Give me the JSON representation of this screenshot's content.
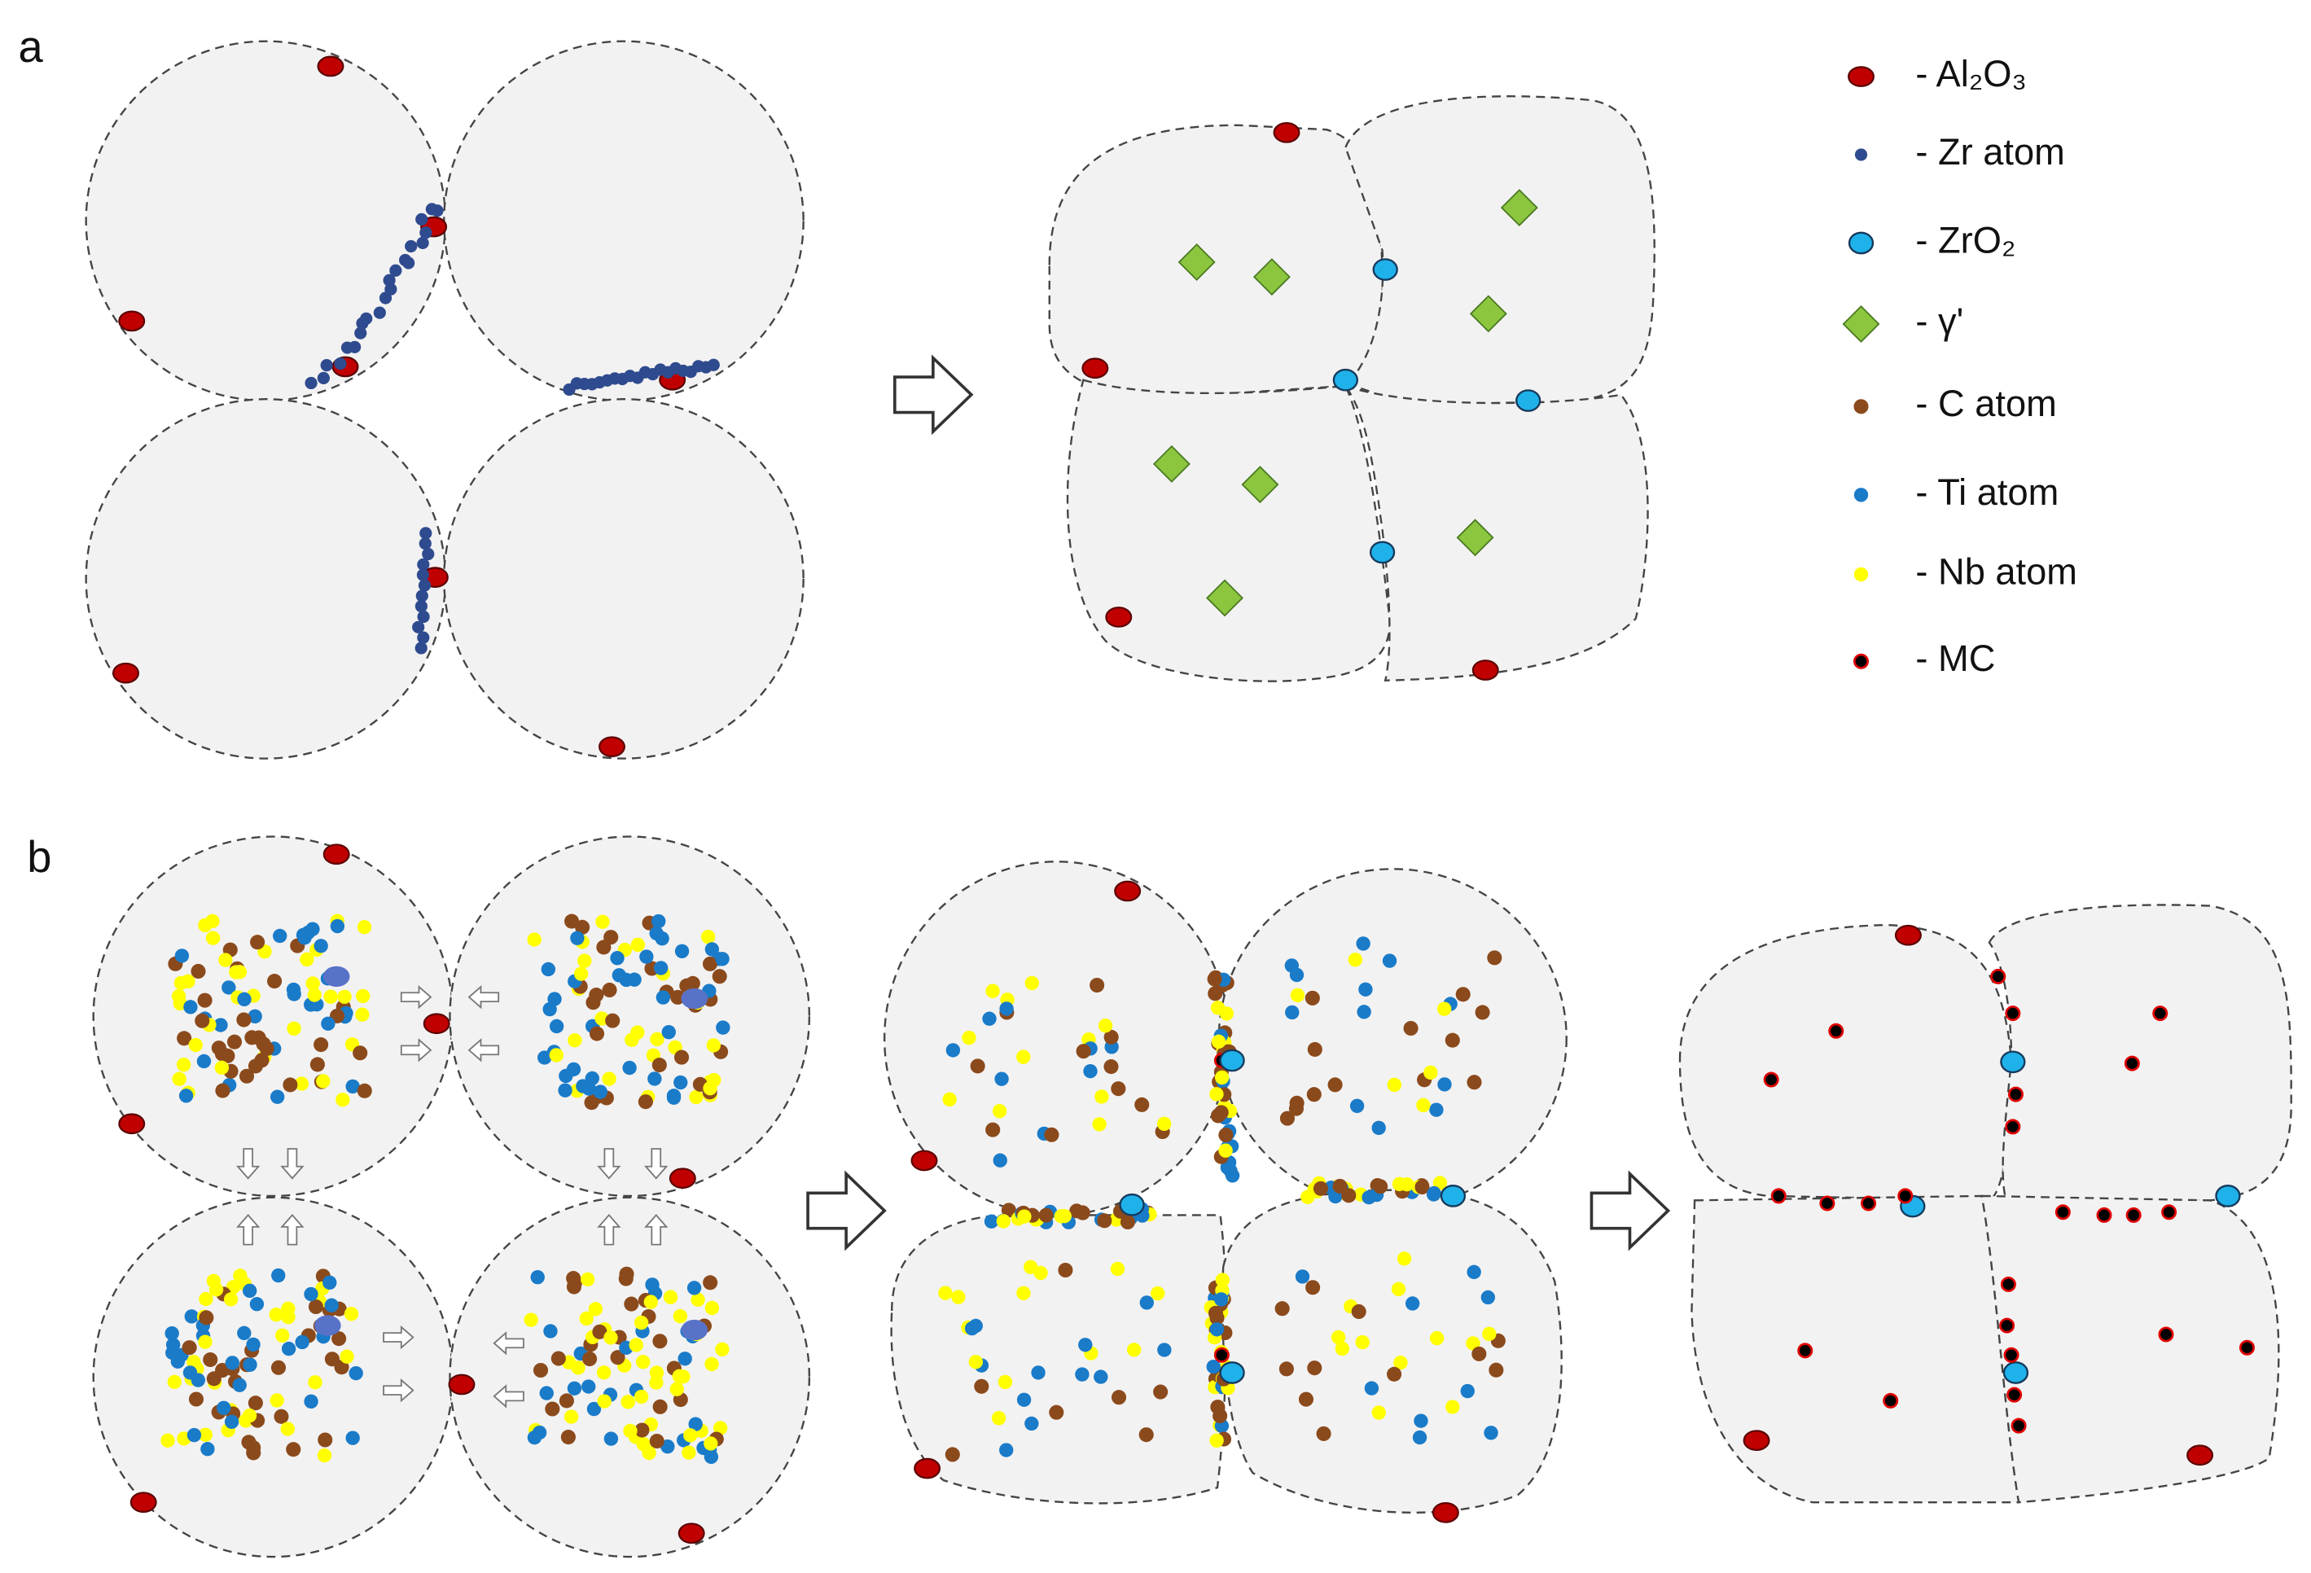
{
  "panels": {
    "a": "a",
    "b": "b"
  },
  "legend": [
    "- Al₂O₃",
    "- Zr atom",
    "- ZrO₂",
    "- γ'",
    "- C atom",
    "- Ti atom",
    "- Nb atom",
    "- MC"
  ]
}
